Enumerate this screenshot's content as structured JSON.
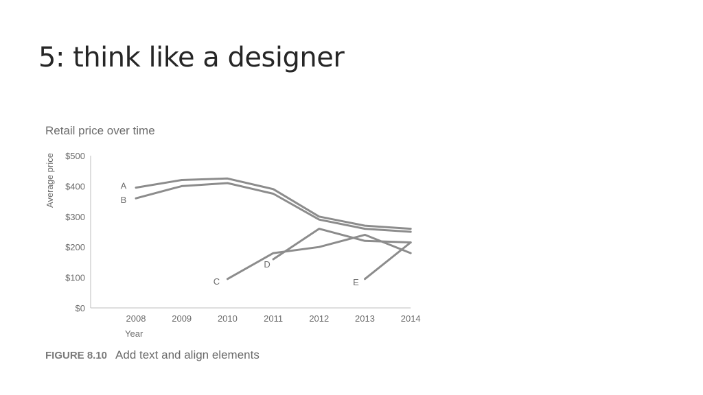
{
  "slide": {
    "title": "5: think like a designer"
  },
  "figure": {
    "label": "FIGURE 8.10",
    "caption": "Add text and align elements"
  },
  "chart_data": {
    "type": "line",
    "title": "Retail price over time",
    "xlabel": "Year",
    "ylabel": "Average price",
    "x": [
      2008,
      2009,
      2010,
      2011,
      2012,
      2013,
      2014
    ],
    "x_tick_labels": [
      "2008",
      "2009",
      "2010",
      "2011",
      "2012",
      "2013",
      "2014"
    ],
    "y_ticks": [
      0,
      100,
      200,
      300,
      400,
      500
    ],
    "y_tick_labels": [
      "$0",
      "$100",
      "$200",
      "$300",
      "$400",
      "$500"
    ],
    "ylim": [
      0,
      500
    ],
    "grid": false,
    "line_color": "#8c8c8c",
    "series": [
      {
        "name": "A",
        "points": [
          [
            2008,
            395
          ],
          [
            2009,
            420
          ],
          [
            2010,
            425
          ],
          [
            2011,
            390
          ],
          [
            2012,
            300
          ],
          [
            2013,
            270
          ],
          [
            2014,
            260
          ]
        ]
      },
      {
        "name": "B",
        "points": [
          [
            2008,
            360
          ],
          [
            2009,
            400
          ],
          [
            2010,
            410
          ],
          [
            2011,
            375
          ],
          [
            2012,
            290
          ],
          [
            2013,
            260
          ],
          [
            2014,
            250
          ]
        ]
      },
      {
        "name": "C",
        "points": [
          [
            2010,
            95
          ],
          [
            2011,
            180
          ],
          [
            2012,
            200
          ],
          [
            2013,
            240
          ],
          [
            2014,
            180
          ]
        ]
      },
      {
        "name": "D",
        "points": [
          [
            2011,
            160
          ],
          [
            2012,
            260
          ],
          [
            2013,
            220
          ],
          [
            2014,
            215
          ]
        ]
      },
      {
        "name": "E",
        "points": [
          [
            2013,
            95
          ],
          [
            2014,
            215
          ]
        ]
      }
    ]
  }
}
